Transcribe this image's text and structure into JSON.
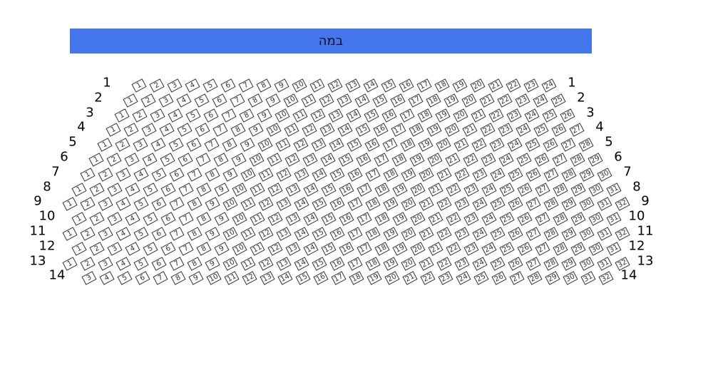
{
  "stage": {
    "label": "במה",
    "color": "#4477ee"
  },
  "rows": [
    {
      "label": "1",
      "first_seat": 1,
      "last_seat": 24
    },
    {
      "label": "2",
      "first_seat": 1,
      "last_seat": 25
    },
    {
      "label": "3",
      "first_seat": 1,
      "last_seat": 26
    },
    {
      "label": "4",
      "first_seat": 1,
      "last_seat": 27
    },
    {
      "label": "5",
      "first_seat": 1,
      "last_seat": 28
    },
    {
      "label": "6",
      "first_seat": 1,
      "last_seat": 29
    },
    {
      "label": "7",
      "first_seat": 1,
      "last_seat": 30
    },
    {
      "label": "8",
      "first_seat": 1,
      "last_seat": 31
    },
    {
      "label": "9",
      "first_seat": 1,
      "last_seat": 32
    },
    {
      "label": "10",
      "first_seat": 1,
      "last_seat": 31
    },
    {
      "label": "11",
      "first_seat": 1,
      "last_seat": 32
    },
    {
      "label": "12",
      "first_seat": 1,
      "last_seat": 31
    },
    {
      "label": "13",
      "first_seat": 1,
      "last_seat": 32
    },
    {
      "label": "14",
      "first_seat": 3,
      "last_seat": 32
    }
  ]
}
